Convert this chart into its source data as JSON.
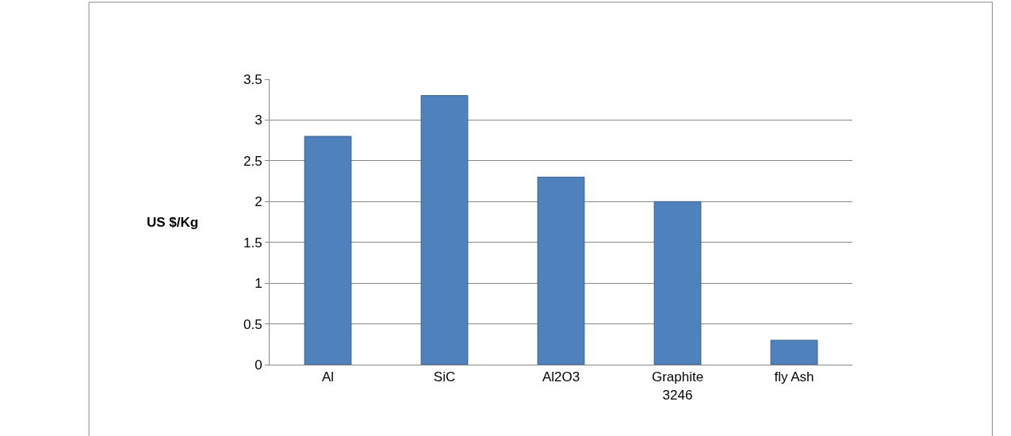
{
  "chart_data": {
    "type": "bar",
    "ylabel": "US $/Kg",
    "categories": [
      "Al",
      "SiC",
      "Al2O3",
      "Graphite 3246",
      "fly Ash"
    ],
    "values": [
      2.8,
      3.3,
      2.3,
      2.0,
      0.3
    ],
    "color": "#4f81bd",
    "ylim": [
      0,
      3.5
    ],
    "yticks": [
      0,
      0.5,
      1,
      1.5,
      2,
      2.5,
      3,
      3.5
    ],
    "grid": "y"
  }
}
